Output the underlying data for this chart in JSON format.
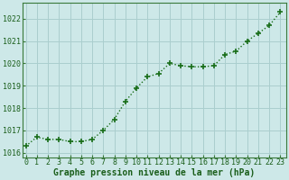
{
  "x": [
    0,
    1,
    2,
    3,
    4,
    5,
    6,
    7,
    8,
    9,
    10,
    11,
    12,
    13,
    14,
    15,
    16,
    17,
    18,
    19,
    20,
    21,
    22,
    23
  ],
  "y": [
    1016.3,
    1016.7,
    1016.6,
    1016.6,
    1016.5,
    1016.5,
    1016.6,
    1017.0,
    1017.5,
    1018.3,
    1018.9,
    1019.4,
    1019.55,
    1020.0,
    1019.9,
    1019.85,
    1019.85,
    1019.9,
    1020.4,
    1020.55,
    1021.0,
    1021.35,
    1021.7,
    1022.3
  ],
  "line_color": "#1a6e1a",
  "marker": "+",
  "markersize": 4,
  "linewidth": 1.0,
  "bg_color": "#cde8e8",
  "grid_color": "#aacece",
  "xlabel": "Graphe pression niveau de la mer (hPa)",
  "xlabel_color": "#1a5e1a",
  "xlabel_fontsize": 7,
  "tick_color": "#1a5e1a",
  "tick_fontsize": 6,
  "ylim": [
    1015.8,
    1022.7
  ],
  "yticks": [
    1016,
    1017,
    1018,
    1019,
    1020,
    1021,
    1022
  ],
  "xticks": [
    0,
    1,
    2,
    3,
    4,
    5,
    6,
    7,
    8,
    9,
    10,
    11,
    12,
    13,
    14,
    15,
    16,
    17,
    18,
    19,
    20,
    21,
    22,
    23
  ],
  "spine_color": "#3a7a3a",
  "xlim": [
    -0.3,
    23.5
  ]
}
